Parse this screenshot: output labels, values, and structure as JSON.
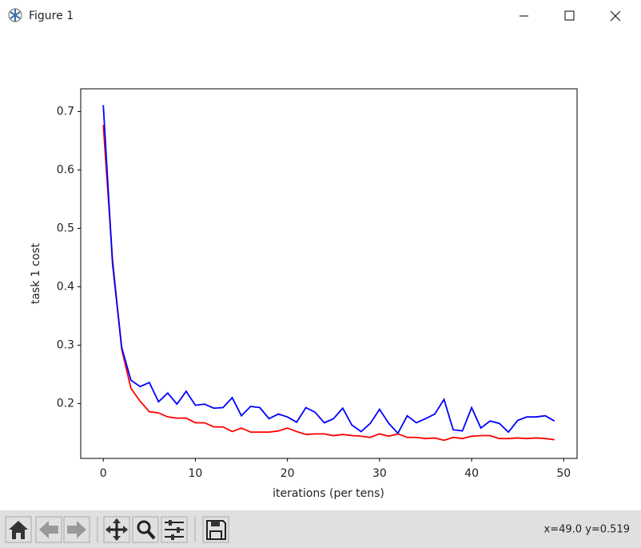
{
  "window": {
    "title": "Figure 1",
    "status": "x=49.0 y=0.519"
  },
  "chart_data": {
    "type": "line",
    "xlabel": "iterations (per tens)",
    "ylabel": "task 1 cost",
    "x": [
      0,
      1,
      2,
      3,
      4,
      5,
      6,
      7,
      8,
      9,
      10,
      11,
      12,
      13,
      14,
      15,
      16,
      17,
      18,
      19,
      20,
      21,
      22,
      23,
      24,
      25,
      26,
      27,
      28,
      29,
      30,
      31,
      32,
      33,
      34,
      35,
      36,
      37,
      38,
      39,
      40,
      41,
      42,
      43,
      44,
      45,
      46,
      47,
      48,
      49
    ],
    "series": [
      {
        "color": "#ff0000",
        "values": [
          0.677,
          0.447,
          0.293,
          0.226,
          0.204,
          0.186,
          0.184,
          0.177,
          0.175,
          0.175,
          0.167,
          0.167,
          0.16,
          0.16,
          0.152,
          0.158,
          0.151,
          0.151,
          0.151,
          0.153,
          0.158,
          0.152,
          0.147,
          0.148,
          0.148,
          0.145,
          0.147,
          0.145,
          0.144,
          0.142,
          0.148,
          0.144,
          0.148,
          0.142,
          0.142,
          0.14,
          0.141,
          0.137,
          0.142,
          0.14,
          0.144,
          0.145,
          0.145,
          0.14,
          0.14,
          0.141,
          0.14,
          0.141,
          0.14,
          0.138
        ]
      },
      {
        "color": "#0000ff",
        "values": [
          0.711,
          0.44,
          0.296,
          0.24,
          0.229,
          0.236,
          0.203,
          0.218,
          0.199,
          0.221,
          0.197,
          0.199,
          0.192,
          0.193,
          0.21,
          0.179,
          0.195,
          0.193,
          0.174,
          0.182,
          0.177,
          0.168,
          0.193,
          0.185,
          0.167,
          0.174,
          0.192,
          0.163,
          0.152,
          0.166,
          0.19,
          0.166,
          0.149,
          0.179,
          0.167,
          0.174,
          0.182,
          0.207,
          0.155,
          0.153,
          0.193,
          0.158,
          0.17,
          0.166,
          0.151,
          0.171,
          0.177,
          0.177,
          0.179,
          0.17
        ]
      }
    ],
    "xlim": [
      -2.45,
      51.45
    ],
    "ylim": [
      0.106,
      0.739
    ],
    "xticks": [
      0,
      10,
      20,
      30,
      40,
      50
    ],
    "yticks": [
      0.2,
      0.3,
      0.4,
      0.5,
      0.6,
      0.7
    ],
    "grid": false
  }
}
